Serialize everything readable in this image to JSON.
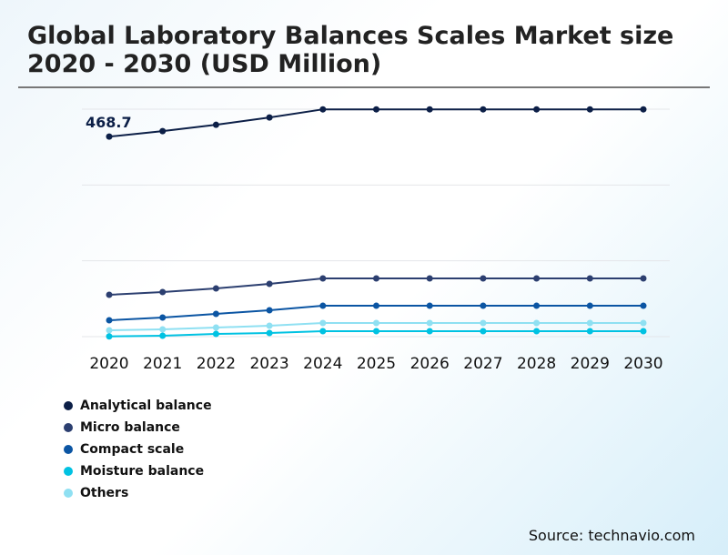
{
  "title": "Global Laboratory Balances Scales Market size 2020 - 2030 (USD Million)",
  "source": "Source: technavio.com",
  "chart_data": {
    "type": "line",
    "title": "Global Laboratory Balances Scales Market size 2020 - 2030 (USD Million)",
    "categories": [
      "2020",
      "2021",
      "2022",
      "2023",
      "2024",
      "2025",
      "2026",
      "2027",
      "2028",
      "2029",
      "2030"
    ],
    "ylim": [
      0,
      533
    ],
    "grid": true,
    "legend_position": "bottom-left",
    "annotation": {
      "series": "Analytical balance",
      "x": "2020",
      "label": "468.7"
    },
    "series": [
      {
        "name": "Analytical balance",
        "color": "#0c1f47",
        "values": [
          468.7,
          481.5,
          496.4,
          513.5,
          532.6,
          532.6,
          532.6,
          532.6,
          532.6,
          532.6,
          532.6
        ]
      },
      {
        "name": "Micro balance",
        "color": "#2c3f70",
        "values": [
          98.0,
          104.4,
          112.9,
          123.6,
          136.4,
          136.4,
          136.4,
          136.4,
          136.4,
          136.4,
          136.4
        ]
      },
      {
        "name": "Compact scale",
        "color": "#0b55a3",
        "values": [
          38.3,
          44.7,
          53.3,
          61.8,
          72.4,
          72.4,
          72.4,
          72.4,
          72.4,
          72.4,
          72.4
        ]
      },
      {
        "name": "Moisture balance",
        "color": "#00c2e2",
        "values": [
          0.5,
          2.1,
          6.4,
          8.5,
          12.8,
          12.8,
          12.8,
          12.8,
          12.8,
          12.8,
          12.8
        ]
      },
      {
        "name": "Others",
        "color": "#8fe0f2",
        "values": [
          14.9,
          17.0,
          21.3,
          25.6,
          32.0,
          32.0,
          32.0,
          32.0,
          32.0,
          32.0,
          32.0
        ]
      }
    ]
  }
}
